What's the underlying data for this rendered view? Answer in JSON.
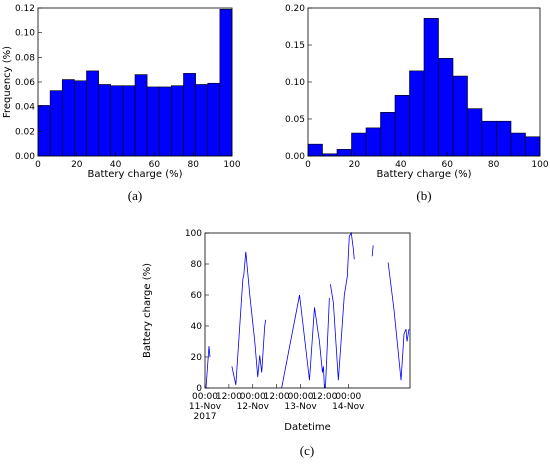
{
  "chart_data": [
    {
      "type": "histogram",
      "caption": "(a)",
      "xlabel": "Battery charge (%)",
      "ylabel": "Frequency (%)",
      "color": "#0000ff",
      "bins": [
        0,
        6.25,
        12.5,
        18.75,
        25,
        31.25,
        37.5,
        43.75,
        50,
        56.25,
        62.5,
        68.75,
        75,
        81.25,
        87.5,
        93.75,
        100
      ],
      "values": [
        0.041,
        0.053,
        0.062,
        0.061,
        0.069,
        0.058,
        0.057,
        0.057,
        0.066,
        0.056,
        0.056,
        0.057,
        0.067,
        0.058,
        0.059,
        0.119
      ],
      "xlim": [
        0,
        100
      ],
      "xticks": [
        0,
        20,
        40,
        60,
        80,
        100
      ],
      "ylim": [
        0,
        0.12
      ],
      "yticks": [
        {
          "value": 0,
          "label": "0.00"
        },
        {
          "value": 0.02,
          "label": "0.02"
        },
        {
          "value": 0.04,
          "label": "0.04"
        },
        {
          "value": 0.06,
          "label": "0.06"
        },
        {
          "value": 0.08,
          "label": "0.08"
        },
        {
          "value": 0.1,
          "label": "0.10"
        },
        {
          "value": 0.12,
          "label": "0.12"
        }
      ]
    },
    {
      "type": "histogram",
      "caption": "(b)",
      "xlabel": "Battery charge (%)",
      "color": "#0000ff",
      "bins": [
        0,
        6.25,
        12.5,
        18.75,
        25,
        31.25,
        37.5,
        43.75,
        50,
        56.25,
        62.5,
        68.75,
        75,
        81.25,
        87.5,
        93.75,
        100
      ],
      "values": [
        0.016,
        0.003,
        0.009,
        0.031,
        0.038,
        0.059,
        0.082,
        0.115,
        0.186,
        0.132,
        0.108,
        0.064,
        0.047,
        0.047,
        0.031,
        0.026
      ],
      "xlim": [
        0,
        100
      ],
      "xticks": [
        0,
        20,
        40,
        60,
        80,
        100
      ],
      "ylim": [
        0,
        0.2
      ],
      "yticks": [
        {
          "value": 0,
          "label": "0.00"
        },
        {
          "value": 0.05,
          "label": "0.05"
        },
        {
          "value": 0.1,
          "label": "0.10"
        },
        {
          "value": 0.15,
          "label": "0.15"
        },
        {
          "value": 0.2,
          "label": "0.20"
        }
      ]
    },
    {
      "type": "line",
      "caption": "(c)",
      "xlabel": "Datetime",
      "ylabel": "Battery charge (%)",
      "color": "#0000ff",
      "x": [
        "2017-11-11T00:30",
        "2017-11-11T02:00",
        "2017-11-11T02:30",
        "2017-11-11T08:00",
        "2017-11-11T13:30",
        "2017-11-11T15:30",
        "2017-11-11T19:00",
        "2017-11-11T19:30",
        "2017-11-11T20:30",
        "2017-11-11T22:30",
        "2017-11-11T23:30",
        "2017-11-12T01:00",
        "2017-11-12T02:30",
        "2017-11-12T03:30",
        "2017-11-12T04:30",
        "2017-11-12T06:00",
        "2017-11-12T06:30",
        "2017-11-12T10:00",
        "2017-11-12T14:30",
        "2017-11-12T23:30",
        "2017-11-13T04:30",
        "2017-11-13T07:00",
        "2017-11-13T09:30",
        "2017-11-13T11:00",
        "2017-11-13T11:30",
        "2017-11-13T12:00",
        "2017-11-13T12:15",
        "2017-11-13T12:30",
        "2017-11-13T14:30",
        "2017-11-13T14:45",
        "2017-11-13T15:00",
        "2017-11-13T16:30",
        "2017-11-13T19:00",
        "2017-11-13T22:00",
        "2017-11-13T23:30",
        "2017-11-14T00:30",
        "2017-11-14T01:30",
        "2017-11-14T02:30",
        "2017-11-14T03:00",
        "2017-11-14T08:00",
        "2017-11-14T12:00",
        "2017-11-14T12:30",
        "2017-11-14T16:00",
        "2017-11-14T20:00",
        "2017-11-14T23:00",
        "2017-11-15T02:30",
        "2017-11-15T04:00",
        "2017-11-15T05:00",
        "2017-11-15T05:30",
        "2017-11-15T06:30"
      ],
      "values": [
        0,
        27,
        20,
        null,
        14,
        2,
        70,
        73,
        88,
        60,
        48,
        30,
        7,
        21,
        10,
        40,
        44,
        null,
        0,
        60,
        5,
        52,
        30,
        10,
        14,
        0,
        null,
        0,
        58,
        null,
        67,
        55,
        5,
        60,
        72,
        98,
        100,
        90,
        83,
        null,
        85,
        92,
        null,
        81,
        50,
        5,
        35,
        38,
        30,
        38
      ],
      "xlim": [
        "2017-11-11T00:00",
        "2017-11-15T07:00"
      ],
      "xticks": [
        {
          "value": "2017-11-11T00:00",
          "label": "00:00\n11-Nov\n2017"
        },
        {
          "value": "2017-11-11T12:00",
          "label": "12:00"
        },
        {
          "value": "2017-11-12T00:00",
          "label": "00:00\n12-Nov"
        },
        {
          "value": "2017-11-12T12:00",
          "label": "12:00"
        },
        {
          "value": "2017-11-13T00:00",
          "label": "00:00\n13-Nov"
        },
        {
          "value": "2017-11-13T12:00",
          "label": "12:00"
        },
        {
          "value": "2017-11-14T00:00",
          "label": "00:00\n14-Nov"
        }
      ],
      "ylim": [
        0,
        100
      ],
      "yticks": [
        0,
        20,
        40,
        60,
        80,
        100
      ]
    }
  ]
}
